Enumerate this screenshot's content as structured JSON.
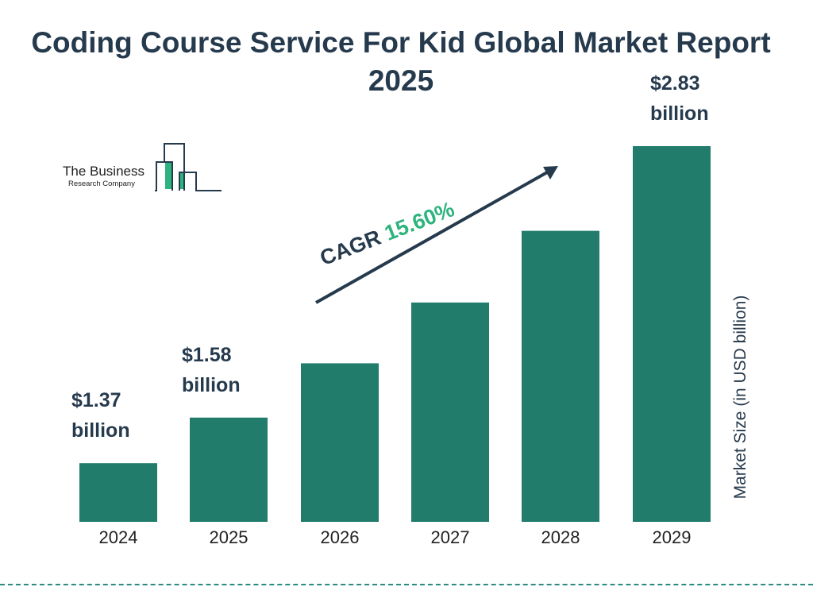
{
  "chart_data": {
    "type": "bar",
    "title": "Coding Course Service For Kid Global Market Report 2025",
    "categories": [
      "2024",
      "2025",
      "2026",
      "2027",
      "2028",
      "2029"
    ],
    "values": [
      1.37,
      1.58,
      1.83,
      2.11,
      2.44,
      2.83
    ],
    "data_labels": {
      "0": "$1.37",
      "1": "$1.58",
      "5": "$2.83"
    },
    "label_unit": "billion",
    "ylabel": "Market Size (in USD billion)",
    "bar_color": "#217c6c",
    "grid": false,
    "cagr_label": "CAGR",
    "cagr_value": "15.60%"
  },
  "logo": {
    "line1": "The Business",
    "line2": "Research Company"
  }
}
